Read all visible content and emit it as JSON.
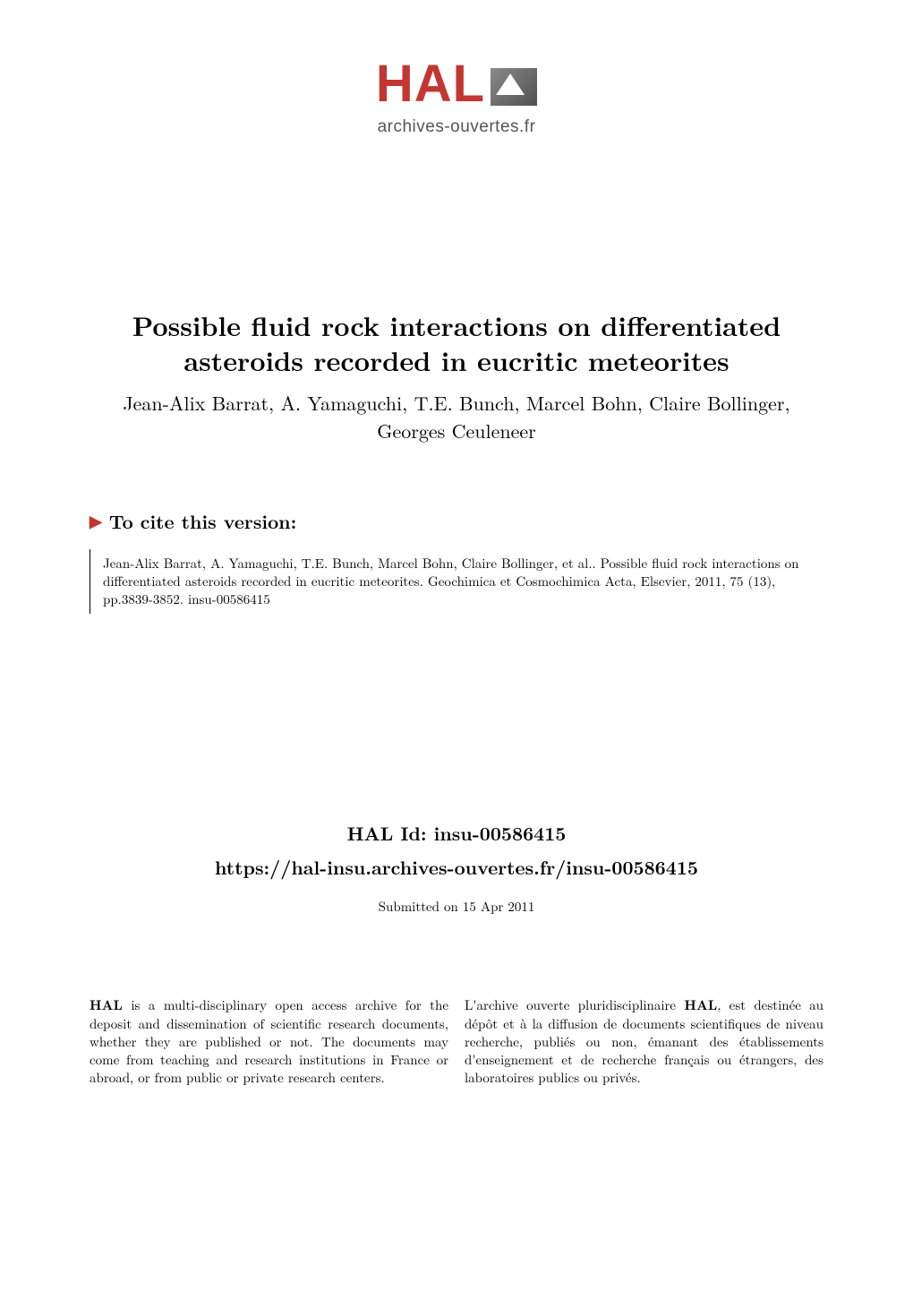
{
  "logo": {
    "text_main": "HAL",
    "subtitle": "archives-ouvertes.fr"
  },
  "title": {
    "line1": "Possible fluid rock interactions on differentiated",
    "line2": "asteroids recorded in eucritic meteorites"
  },
  "authors": {
    "line1": "Jean-Alix Barrat, A. Yamaguchi, T.E. Bunch, Marcel Bohn, Claire Bollinger,",
    "line2": "Georges Ceuleneer"
  },
  "cite": {
    "heading": "To cite this version:",
    "text": "Jean-Alix Barrat, A. Yamaguchi, T.E. Bunch, Marcel Bohn, Claire Bollinger, et al.. Possible fluid rock interactions on differentiated asteroids recorded in eucritic meteorites. Geochimica et Cosmochimica Acta, Elsevier, 2011, 75 (13), pp.3839-3852.  insu-00586415"
  },
  "halid": {
    "label_prefix": "HAL Id: ",
    "id": "insu-00586415",
    "url": "https://hal-insu.archives-ouvertes.fr/insu-00586415",
    "submitted": "Submitted on 15 Apr 2011"
  },
  "description": {
    "en_bold": "HAL",
    "en_text": " is a multi-disciplinary open access archive for the deposit and dissemination of scientific research documents, whether they are published or not. The documents may come from teaching and research institutions in France or abroad, or from public or private research centers.",
    "fr_prefix": "L'archive ouverte pluridisciplinaire ",
    "fr_bold": "HAL",
    "fr_text": ", est destinée au dépôt et à la diffusion de documents scientifiques de niveau recherche, publiés ou non, émanant des établissements d'enseignement et de recherche français ou étrangers, des laboratoires publics ou privés."
  },
  "colors": {
    "accent_red": "#c43631",
    "text": "#000000",
    "background": "#ffffff",
    "logo_subtitle": "#555555"
  },
  "typography": {
    "title_fontsize": 30,
    "authors_fontsize": 22,
    "heading_fontsize": 21,
    "body_fontsize": 15
  }
}
